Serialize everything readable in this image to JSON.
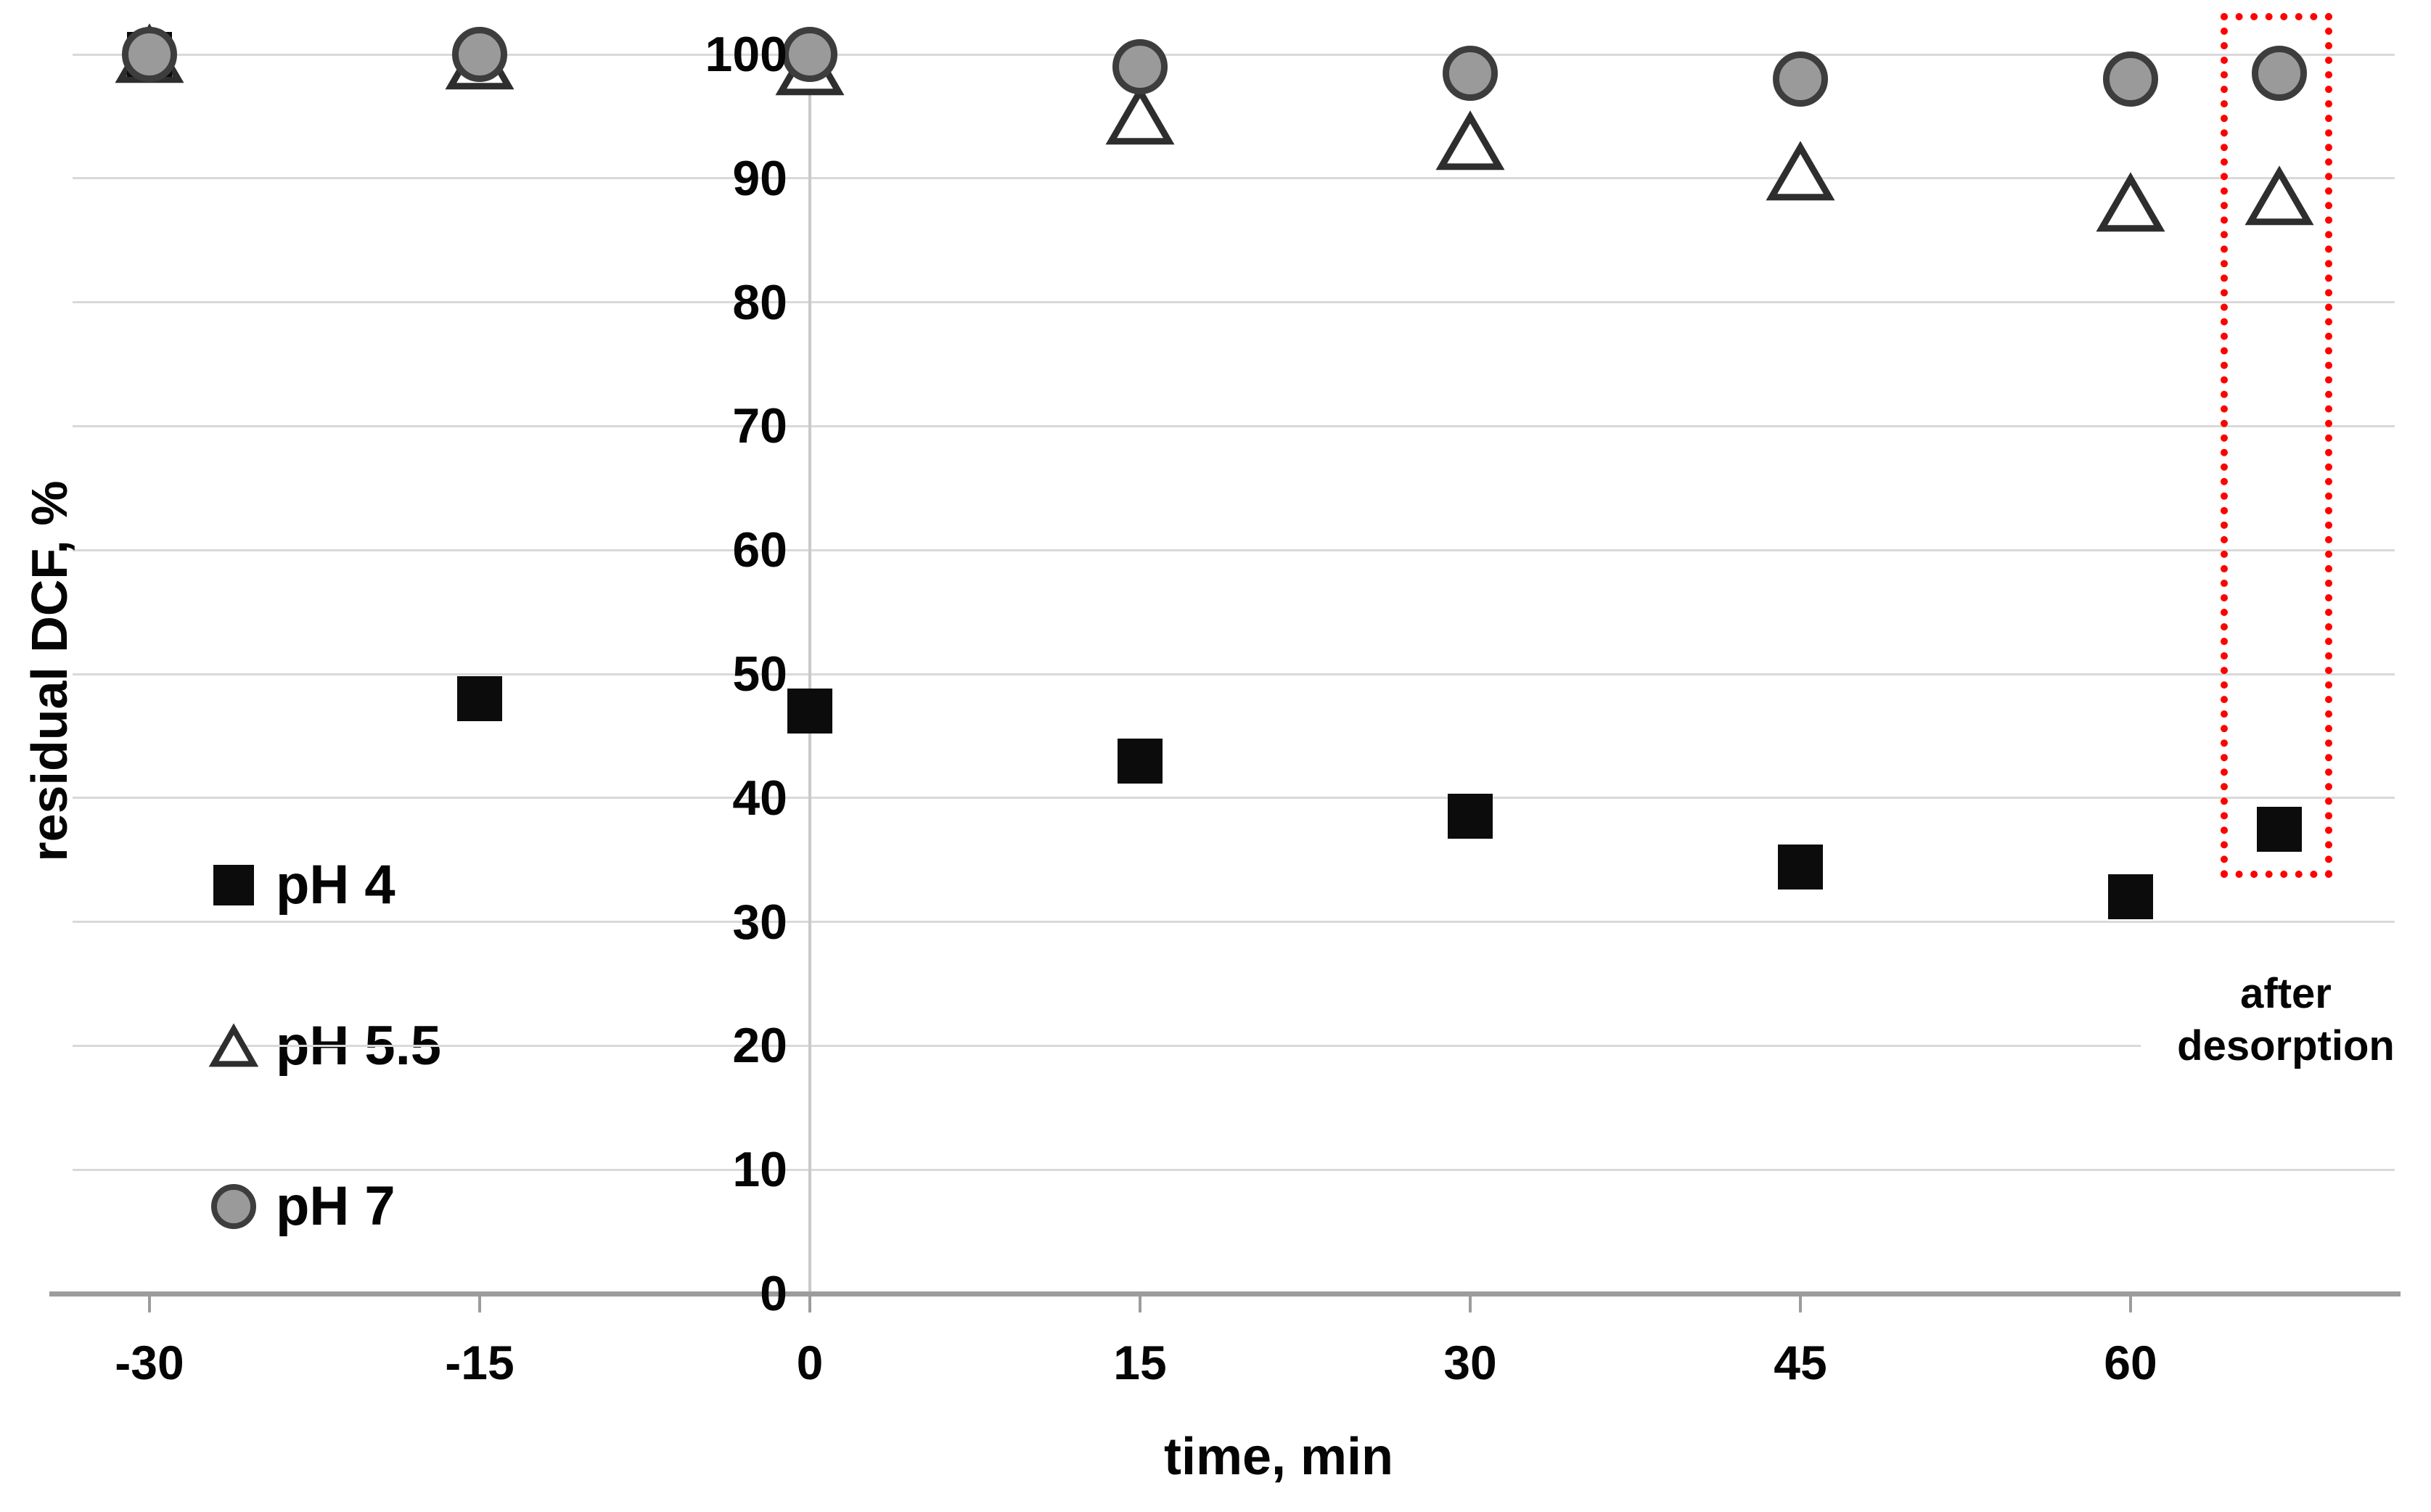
{
  "figure": {
    "xlabel": "time, min",
    "ylabel": "residual DCF, %",
    "annotation": {
      "line1": "after",
      "line2": "desorption"
    }
  },
  "chart_data": {
    "type": "scatter",
    "title": "",
    "xlabel": "time, min",
    "ylabel": "residual DCF, %",
    "x_tick_labels": [
      "-30",
      "-15",
      "0",
      "15",
      "30",
      "45",
      "60"
    ],
    "x_tick_values": [
      -30,
      -15,
      0,
      15,
      30,
      45,
      60
    ],
    "y_ticks": [
      0,
      10,
      20,
      30,
      40,
      50,
      60,
      70,
      80,
      90,
      100
    ],
    "ylim": [
      0,
      100
    ],
    "xlim_minutes": [
      -33.5,
      72
    ],
    "grid": "horizontal-only",
    "legend_position": "inside-left-middle",
    "series": [
      {
        "name": "pH 4",
        "marker": "filled-square",
        "color": "#0c0c0c",
        "x": [
          -30,
          -15,
          0,
          15,
          30,
          45,
          60,
          "after"
        ],
        "y": [
          100,
          48,
          47,
          43,
          38.5,
          34.4,
          32,
          37.5
        ]
      },
      {
        "name": "pH 5.5",
        "marker": "open-triangle",
        "stroke": "#2e2e2e",
        "fill": "#ffffff",
        "x": [
          -30,
          -15,
          0,
          15,
          30,
          45,
          60,
          "after"
        ],
        "y": [
          100,
          99.5,
          99,
          95,
          93,
          90.5,
          88,
          88.5
        ]
      },
      {
        "name": "pH 7",
        "marker": "filled-circle",
        "stroke": "#3d3d3d",
        "fill": "#9a9a9a",
        "x": [
          -30,
          -15,
          0,
          15,
          30,
          45,
          60,
          "after"
        ],
        "y": [
          100,
          100,
          100,
          99,
          98.5,
          98,
          98,
          98.5
        ]
      }
    ],
    "highlight": {
      "box_style": "dotted",
      "box_color": "#fe0000",
      "covers": "after-desorption points",
      "label_line1": "after",
      "label_line2": "desorption"
    }
  },
  "legend": {
    "items": [
      {
        "label": "pH 4",
        "marker": "filled-square"
      },
      {
        "label": "pH 5.5",
        "marker": "open-triangle"
      },
      {
        "label": "pH 7",
        "marker": "filled-circle"
      }
    ]
  },
  "colors": {
    "grid": "#d9d9d9",
    "axis": "#9c9c9c",
    "text": "#050505",
    "highlight": "#fe0000",
    "square_fill": "#0c0c0c",
    "circle_fill": "#9a9a9a",
    "circle_ring": "#3d3d3d",
    "triangle_stroke": "#2e2e2e",
    "triangle_fill": "#ffffff"
  }
}
